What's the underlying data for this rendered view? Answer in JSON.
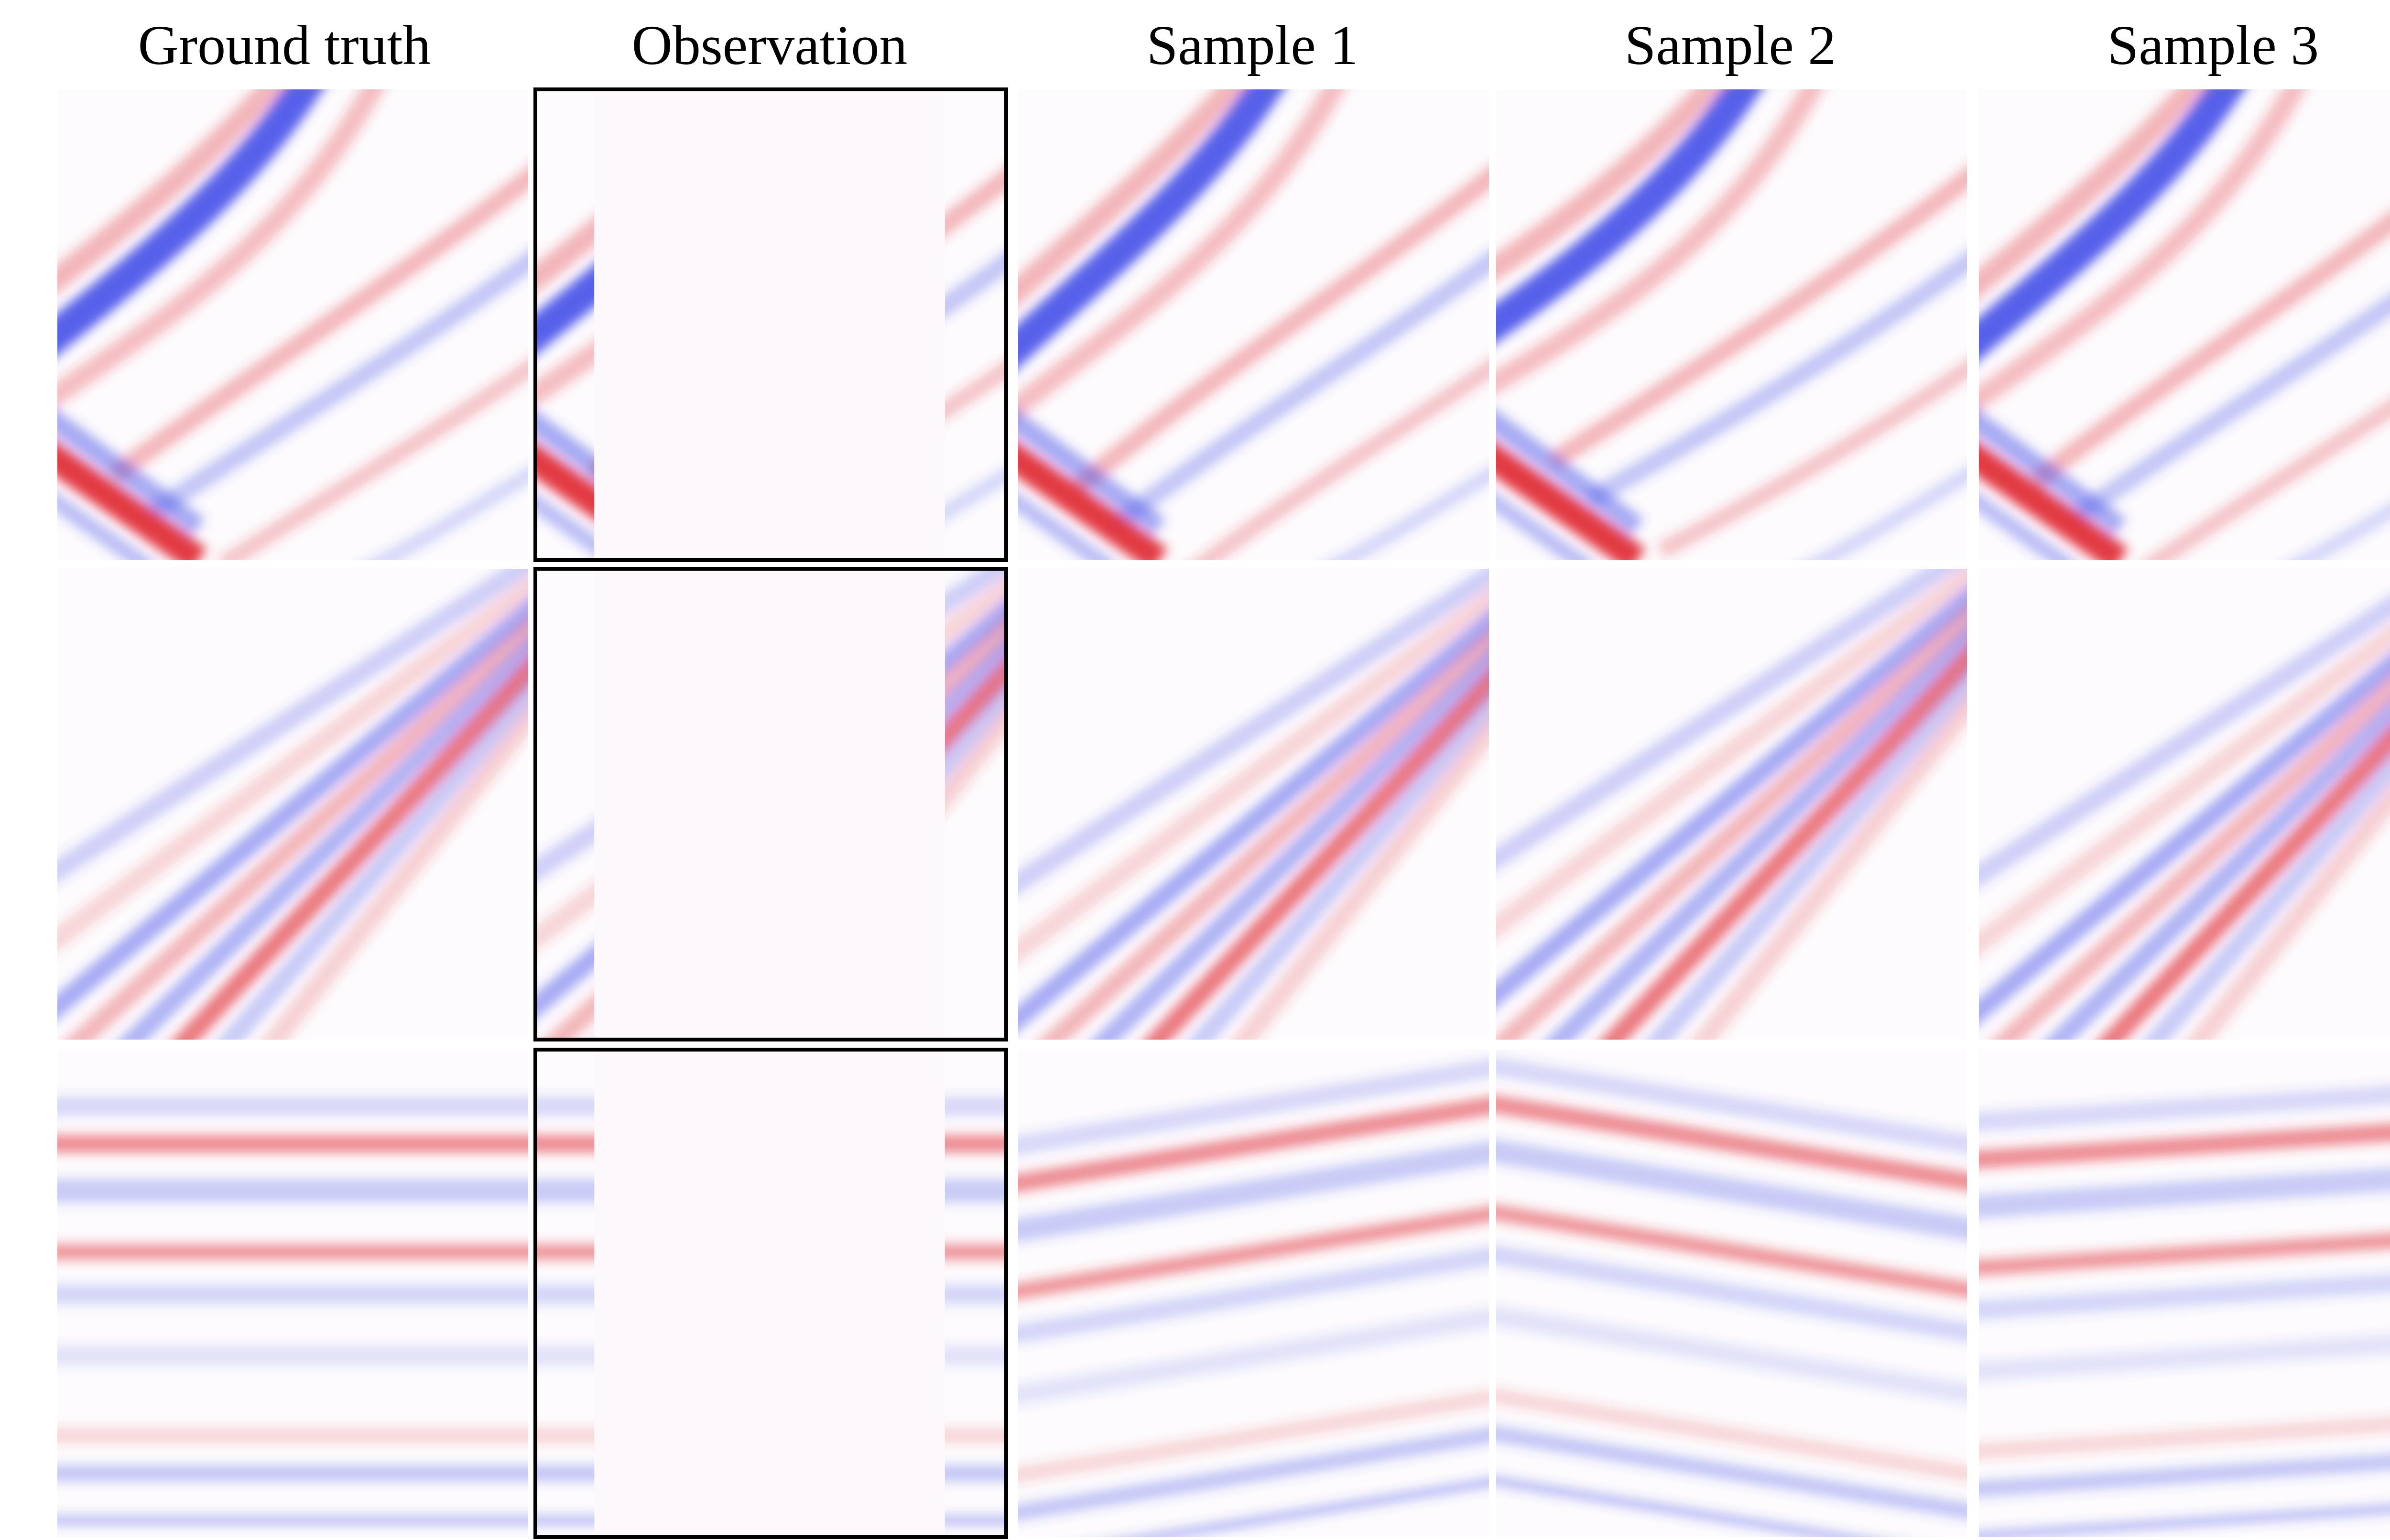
{
  "columns": [
    {
      "id": "ground_truth",
      "label": "Ground truth"
    },
    {
      "id": "observation",
      "label": "Observation"
    },
    {
      "id": "sample1",
      "label": "Sample 1"
    },
    {
      "id": "sample2",
      "label": "Sample 2"
    },
    {
      "id": "sample3",
      "label": "Sample 3"
    }
  ],
  "rows": [
    {
      "id": "row1",
      "pattern": "diagonal events with a crossing dipping event"
    },
    {
      "id": "row2",
      "pattern": "parallel diagonal events"
    },
    {
      "id": "row3",
      "pattern": "flat horizontal layers"
    }
  ],
  "colors": {
    "positive": "#e0303a",
    "negative": "#3a47e6",
    "background": "#fdfbfd",
    "observation_fill": "#fdf8fb",
    "frame": "#000000"
  }
}
